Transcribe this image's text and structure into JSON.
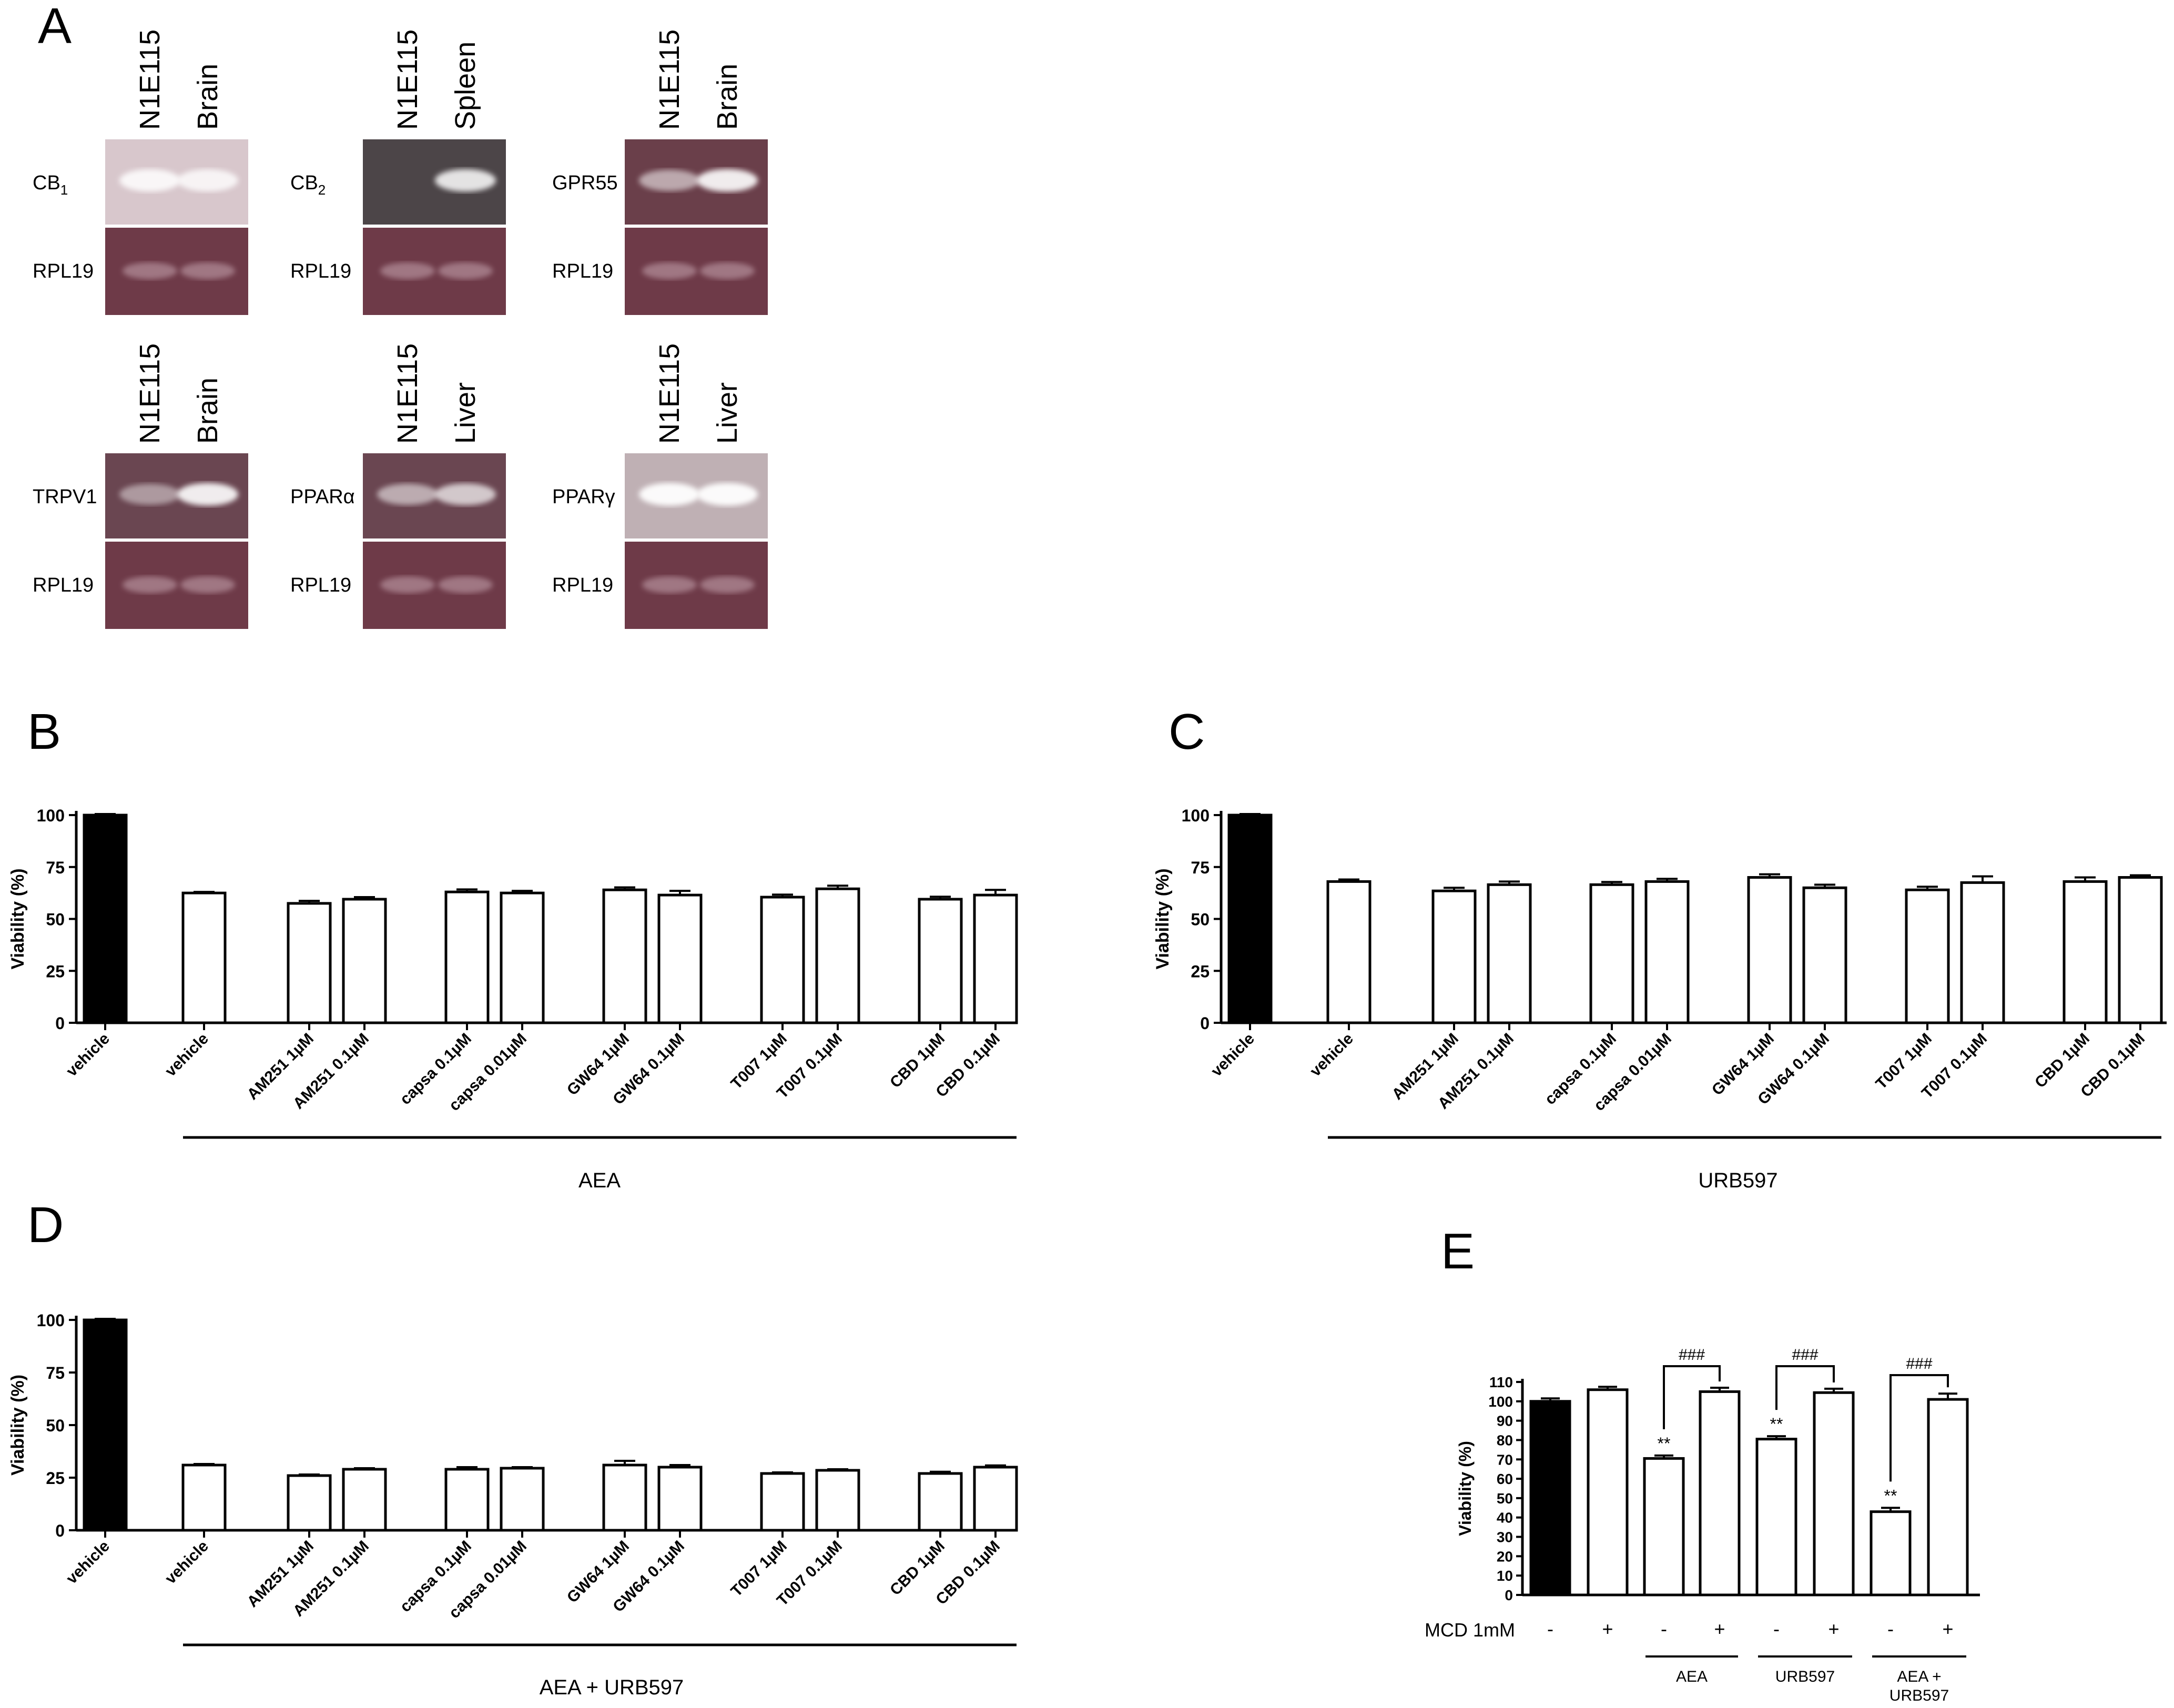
{
  "panels": {
    "A": "A",
    "B": "B",
    "C": "C",
    "D": "D",
    "E": "E"
  },
  "gels": [
    {
      "lanes": [
        "N1E115",
        "Brain"
      ],
      "target": "CB",
      "target_sub": "1",
      "control": "RPL19",
      "top_bg": "#d8c7cc",
      "bands": [
        0.85,
        0.8
      ]
    },
    {
      "lanes": [
        "N1E115",
        "Spleen"
      ],
      "target": "CB",
      "target_sub": "2",
      "control": "RPL19",
      "top_bg": "#4c4548",
      "bands": [
        0.0,
        0.85
      ]
    },
    {
      "lanes": [
        "N1E115",
        "Brain"
      ],
      "target": "GPR55",
      "target_sub": "",
      "control": "RPL19",
      "top_bg": "#6a3f4a",
      "bands": [
        0.55,
        0.9
      ]
    },
    {
      "lanes": [
        "N1E115",
        "Brain"
      ],
      "target": "TRPV1",
      "target_sub": "",
      "control": "RPL19",
      "top_bg": "#6a4651",
      "bands": [
        0.45,
        0.9
      ]
    },
    {
      "lanes": [
        "N1E115",
        "Liver"
      ],
      "target": "PPARα",
      "target_sub": "",
      "control": "RPL19",
      "top_bg": "#6a4651",
      "bands": [
        0.55,
        0.7
      ]
    },
    {
      "lanes": [
        "N1E115",
        "Liver"
      ],
      "target": "PPARγ",
      "target_sub": "",
      "control": "RPL19",
      "top_bg": "#bfb0b4",
      "bands": [
        0.95,
        0.95
      ]
    }
  ],
  "chart_data": [
    {
      "panel": "B",
      "type": "bar",
      "ylabel": "Viability (%)",
      "ylim": [
        0,
        100
      ],
      "yticks": [
        0,
        25,
        50,
        75,
        100
      ],
      "categories": [
        "vehicle",
        "vehicle",
        "AM251 1µM",
        "AM251 0.1µM",
        "capsa 0.1µM",
        "capsa 0.01µM",
        "GW64 1µM",
        "GW64 0.1µM",
        "T007 1µM",
        "T007 0.1µM",
        "CBD 1µM",
        "CBD 0.1µM"
      ],
      "values": [
        100,
        62.5,
        57.5,
        59.5,
        63,
        62.5,
        64,
        61.5,
        60.5,
        64.5,
        59.5,
        61.5
      ],
      "errors": [
        0.5,
        0.5,
        1.2,
        1,
        1.2,
        1,
        1.2,
        2,
        1.2,
        1.5,
        1.2,
        2.5
      ],
      "group_label": "AEA"
    },
    {
      "panel": "C",
      "type": "bar",
      "ylabel": "Viability (%)",
      "ylim": [
        0,
        100
      ],
      "yticks": [
        0,
        25,
        50,
        75,
        100
      ],
      "categories": [
        "vehicle",
        "vehicle",
        "AM251 1µM",
        "AM251 0.1µM",
        "capsa 0.1µM",
        "capsa 0.01µM",
        "GW64 1µM",
        "GW64 0.1µM",
        "T007 1µM",
        "T007 0.1µM",
        "CBD 1µM",
        "CBD 0.1µM"
      ],
      "values": [
        100,
        68,
        63.5,
        66.5,
        66.5,
        68,
        70,
        65,
        64,
        67.5,
        68,
        70
      ],
      "errors": [
        0.5,
        1,
        1.5,
        1.5,
        1.3,
        1.3,
        1.5,
        1.5,
        1.5,
        3,
        2,
        1
      ],
      "group_label": "URB597"
    },
    {
      "panel": "D",
      "type": "bar",
      "ylabel": "Viability (%)",
      "ylim": [
        0,
        100
      ],
      "yticks": [
        0,
        25,
        50,
        75,
        100
      ],
      "categories": [
        "vehicle",
        "vehicle",
        "AM251 1µM",
        "AM251 0.1µM",
        "capsa 0.1µM",
        "capsa 0.01µM",
        "GW64 1µM",
        "GW64 0.1µM",
        "T007 1µM",
        "T007 0.1µM",
        "CBD 1µM",
        "CBD 0.1µM"
      ],
      "values": [
        100,
        31,
        26,
        29,
        29,
        29.5,
        31,
        30,
        27,
        28.5,
        27,
        30
      ],
      "errors": [
        0.5,
        0.5,
        0.5,
        0.5,
        1,
        0.5,
        2,
        1,
        0.5,
        0.5,
        0.8,
        0.8
      ],
      "group_label": "AEA + URB597"
    },
    {
      "panel": "E",
      "type": "bar",
      "ylabel": "Viability (%)",
      "ylim": [
        0,
        110
      ],
      "yticks": [
        0,
        10,
        20,
        30,
        40,
        50,
        60,
        70,
        80,
        90,
        100,
        110
      ],
      "values": [
        100,
        106,
        70.5,
        105,
        80.5,
        104.5,
        43,
        101
      ],
      "errors": [
        1.5,
        1.5,
        1.5,
        2,
        1.5,
        2,
        2,
        3
      ],
      "mcd_label": "MCD 1mM",
      "mcd_signs": [
        "-",
        "+",
        "-",
        "+",
        "-",
        "+",
        "-",
        "+"
      ],
      "groups": [
        {
          "label": "AEA",
          "label2": ""
        },
        {
          "label": "URB597",
          "label2": ""
        },
        {
          "label": "AEA +",
          "label2": "URB597"
        }
      ],
      "significance": "**",
      "comparison": "###"
    }
  ]
}
